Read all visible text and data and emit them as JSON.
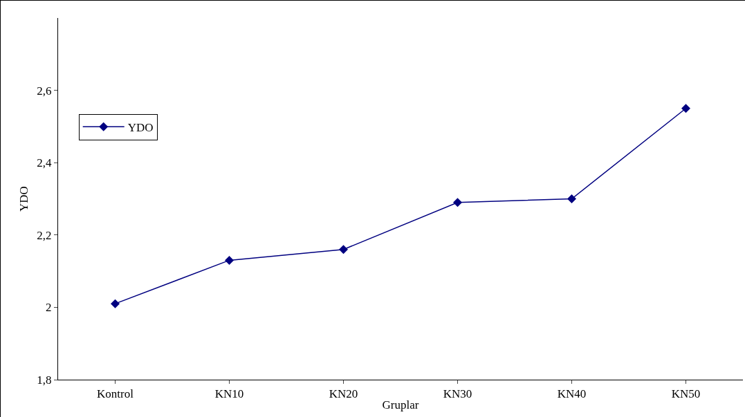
{
  "chart_data": {
    "type": "line",
    "xlabel": "Gruplar",
    "ylabel": "YDO",
    "categories": [
      "Kontrol",
      "KN10",
      "KN20",
      "KN30",
      "KN40",
      "KN50"
    ],
    "series": [
      {
        "name": "YDO",
        "color": "#000080",
        "values": [
          2.01,
          2.13,
          2.16,
          2.29,
          2.3,
          2.55
        ]
      }
    ],
    "ylim": [
      1.8,
      2.8
    ],
    "yticks": [
      {
        "value": 1.8,
        "label": "1,8"
      },
      {
        "value": 2,
        "label": "2"
      },
      {
        "value": 2.2,
        "label": "2,2"
      },
      {
        "value": 2.4,
        "label": "2,4"
      },
      {
        "value": 2.6,
        "label": "2,6"
      }
    ],
    "grid": false,
    "legend": "top left",
    "marker": "diamond",
    "line_style": "solid"
  }
}
